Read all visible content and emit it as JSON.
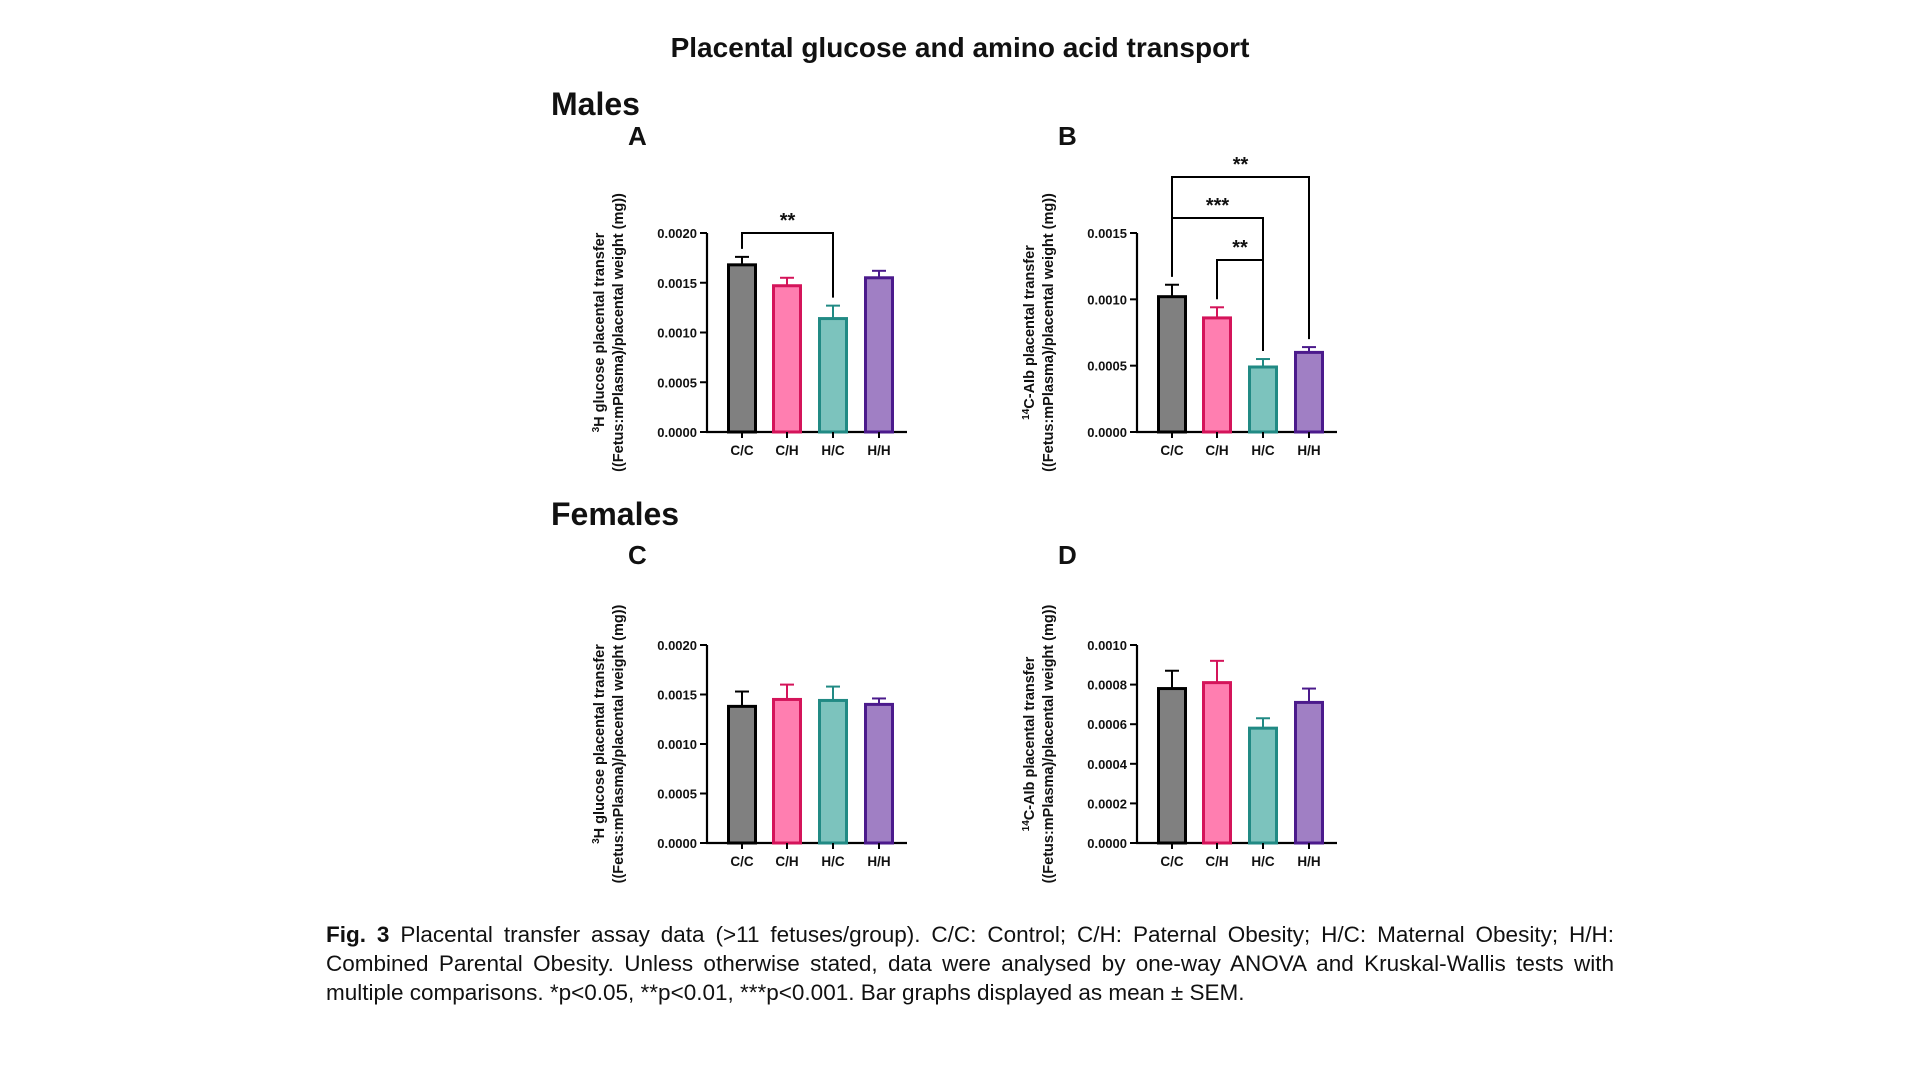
{
  "title": "Placental glucose and amino acid transport",
  "sections": {
    "males": "Males",
    "females": "Females"
  },
  "caption": {
    "fig_label": "Fig. 3",
    "text": " Placental transfer assay data (>11 fetuses/group). C/C: Control; C/H: Paternal Obesity; H/C: Maternal Obesity; H/H: Combined Parental Obesity. Unless otherwise stated, data were analysed by one-way ANOVA and Kruskal-Wallis tests with multiple comparisons. *p<0.05, **p<0.01, ***p<0.001. Bar graphs displayed as mean ± SEM."
  },
  "colors": {
    "C/C": {
      "fill": "#808080",
      "stroke": "#000000"
    },
    "C/H": {
      "fill": "#ff7eb0",
      "stroke": "#d4145a"
    },
    "H/C": {
      "fill": "#7cc3bd",
      "stroke": "#218a84"
    },
    "H/H": {
      "fill": "#a07fc4",
      "stroke": "#4b1a8c"
    }
  },
  "chart_data": [
    {
      "panel": "A",
      "type": "bar",
      "categories": [
        "C/C",
        "C/H",
        "H/C",
        "H/H"
      ],
      "values": [
        0.00168,
        0.00147,
        0.00114,
        0.00155
      ],
      "errors": [
        8e-05,
        8e-05,
        0.00013,
        7e-05
      ],
      "ylim": [
        0,
        0.002
      ],
      "yticks": [
        "0.0000",
        "0.0005",
        "0.0010",
        "0.0015",
        "0.0020"
      ],
      "ylabel_line1_sup": "3",
      "ylabel_line1": "H glucose placental transfer",
      "ylabel_line2": "((Fetus:mPlasma)/placental weight (mg))",
      "significance": [
        {
          "from": 0,
          "to": 2,
          "label": "**"
        }
      ]
    },
    {
      "panel": "B",
      "type": "bar",
      "categories": [
        "C/C",
        "C/H",
        "H/C",
        "H/H"
      ],
      "values": [
        0.00102,
        0.00086,
        0.00049,
        0.0006
      ],
      "errors": [
        9e-05,
        8e-05,
        6e-05,
        4e-05
      ],
      "ylim": [
        0,
        0.0015
      ],
      "yticks": [
        "0.0000",
        "0.0005",
        "0.0010",
        "0.0015"
      ],
      "ylabel_line1_sup": "14",
      "ylabel_line1": "C-AIb placental transfer",
      "ylabel_line2": "((Fetus:mPlasma)/placental weight (mg))",
      "significance": [
        {
          "from": 1,
          "to": 2,
          "label": "**"
        },
        {
          "from": 0,
          "to": 2,
          "label": "***"
        },
        {
          "from": 0,
          "to": 3,
          "label": "**"
        }
      ]
    },
    {
      "panel": "C",
      "type": "bar",
      "categories": [
        "C/C",
        "C/H",
        "H/C",
        "H/H"
      ],
      "values": [
        0.00138,
        0.00145,
        0.00144,
        0.0014
      ],
      "errors": [
        0.00015,
        0.00015,
        0.00014,
        6e-05
      ],
      "ylim": [
        0,
        0.002
      ],
      "yticks": [
        "0.0000",
        "0.0005",
        "0.0010",
        "0.0015",
        "0.0020"
      ],
      "ylabel_line1_sup": "3",
      "ylabel_line1": "H glucose placental transfer",
      "ylabel_line2": "((Fetus:mPlasma)/placental weight (mg))",
      "significance": []
    },
    {
      "panel": "D",
      "type": "bar",
      "categories": [
        "C/C",
        "C/H",
        "H/C",
        "H/H"
      ],
      "values": [
        0.00078,
        0.00081,
        0.00058,
        0.00071
      ],
      "errors": [
        9e-05,
        0.00011,
        5e-05,
        7e-05
      ],
      "ylim": [
        0,
        0.001
      ],
      "yticks": [
        "0.0000",
        "0.0002",
        "0.0004",
        "0.0006",
        "0.0008",
        "0.0010"
      ],
      "ylabel_line1_sup": "14",
      "ylabel_line1": "C-AIb placental transfer",
      "ylabel_line2": "((Fetus:mPlasma)/placental weight (mg))",
      "significance": []
    }
  ]
}
